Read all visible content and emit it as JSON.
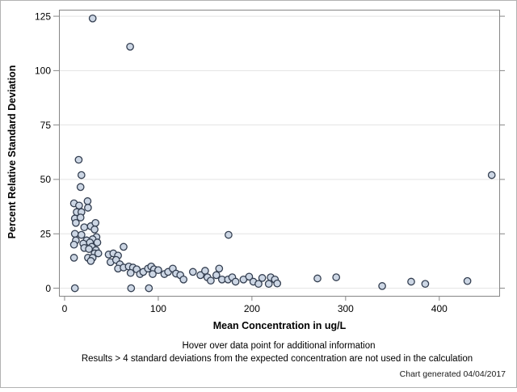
{
  "chart_data": {
    "type": "scatter",
    "xlabel": "Mean Concentration in ug/L",
    "ylabel": "Percent Relative Standard Deviation",
    "x_ticks": [
      0,
      100,
      200,
      300,
      400
    ],
    "y_ticks": [
      0,
      25,
      50,
      75,
      100,
      125
    ],
    "xlim": [
      -6,
      464
    ],
    "ylim": [
      -3.5,
      128
    ],
    "grid": "horizontal-only",
    "legend": "none",
    "marker": "circle",
    "points": [
      [
        30,
        124
      ],
      [
        70,
        111
      ],
      [
        456,
        52
      ],
      [
        15,
        59
      ],
      [
        18,
        52
      ],
      [
        17,
        46.5
      ],
      [
        24.5,
        40
      ],
      [
        10,
        39
      ],
      [
        15.5,
        38
      ],
      [
        25,
        37
      ],
      [
        13,
        35
      ],
      [
        18,
        35
      ],
      [
        11,
        32
      ],
      [
        17,
        32.5
      ],
      [
        12,
        30
      ],
      [
        21,
        28
      ],
      [
        28,
        28.5
      ],
      [
        33,
        30
      ],
      [
        32,
        27
      ],
      [
        11,
        25
      ],
      [
        18,
        24.5
      ],
      [
        34,
        23.5
      ],
      [
        12,
        22
      ],
      [
        23.5,
        22
      ],
      [
        30,
        22.5
      ],
      [
        10,
        20
      ],
      [
        20,
        20.5
      ],
      [
        27,
        21
      ],
      [
        35,
        21
      ],
      [
        29,
        19
      ],
      [
        21,
        18.5
      ],
      [
        26,
        18
      ],
      [
        33.5,
        17.5
      ],
      [
        32,
        16
      ],
      [
        36,
        16
      ],
      [
        25,
        14
      ],
      [
        30,
        14
      ],
      [
        10,
        14
      ],
      [
        28,
        12.5
      ],
      [
        47,
        15.5
      ],
      [
        52,
        16
      ],
      [
        57,
        15
      ],
      [
        49,
        12
      ],
      [
        55,
        13
      ],
      [
        59,
        11
      ],
      [
        57,
        9
      ],
      [
        63,
        19
      ],
      [
        63,
        9.5
      ],
      [
        68.5,
        10
      ],
      [
        73,
        9.5
      ],
      [
        77,
        8.7
      ],
      [
        70.5,
        7
      ],
      [
        80.5,
        6.5
      ],
      [
        84,
        7.5
      ],
      [
        89,
        9
      ],
      [
        92.5,
        10
      ],
      [
        95.5,
        8.7
      ],
      [
        94,
        6.5
      ],
      [
        100,
        8.3
      ],
      [
        106.5,
        6.5
      ],
      [
        110.5,
        7.5
      ],
      [
        115.5,
        9
      ],
      [
        119,
        6.7
      ],
      [
        123.5,
        6
      ],
      [
        127,
        4
      ],
      [
        137,
        7.5
      ],
      [
        145,
        6
      ],
      [
        150,
        8
      ],
      [
        152.5,
        5
      ],
      [
        156,
        3.5
      ],
      [
        162,
        6
      ],
      [
        165,
        9
      ],
      [
        168,
        4
      ],
      [
        174.5,
        4
      ],
      [
        179,
        5
      ],
      [
        182.5,
        3
      ],
      [
        191,
        4
      ],
      [
        197,
        5.3
      ],
      [
        201.5,
        3
      ],
      [
        207,
        2
      ],
      [
        211,
        4.7
      ],
      [
        218,
        2
      ],
      [
        220,
        5
      ],
      [
        224.5,
        4
      ],
      [
        227,
        2.2
      ],
      [
        175,
        24.5
      ],
      [
        270,
        4.5
      ],
      [
        290,
        5
      ],
      [
        339,
        1
      ],
      [
        370,
        3
      ],
      [
        385,
        2
      ],
      [
        430,
        3.3
      ],
      [
        11,
        0
      ],
      [
        71,
        0
      ],
      [
        90,
        0
      ]
    ]
  },
  "footer": {
    "hover_note": "Hover over data point for additional information",
    "exclusion_note": "Results > 4 standard deviations from the expected concentration are not used in the calculation",
    "generated_note": "Chart generated 04/04/2017"
  },
  "colors": {
    "marker_fill": "#ccd6e4",
    "marker_stroke": "#333e50",
    "plot_border": "#868686",
    "tick": "#868686",
    "gridline": "#e3e3e3",
    "frame": "#b2b2b2",
    "text": "#000000"
  }
}
